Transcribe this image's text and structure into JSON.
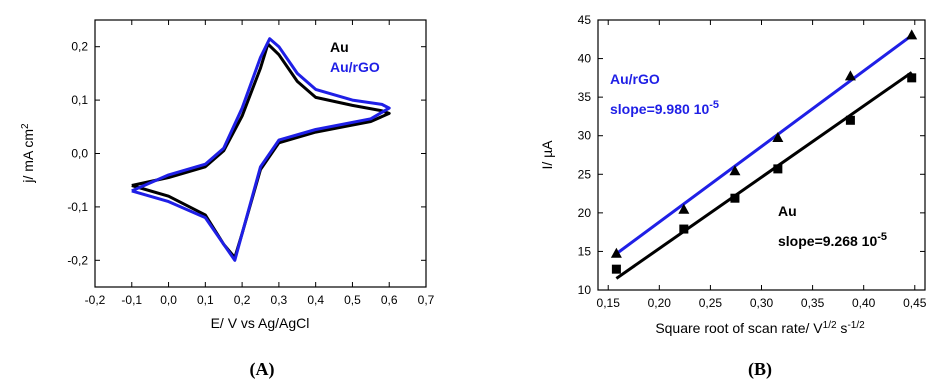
{
  "chart_data": [
    {
      "panel_label": "(A)",
      "type": "line",
      "xlabel": "E/ V vs Ag/AgCl",
      "ylabel": "j/ mA cm",
      "ylabel_sup": "2",
      "xlim": [
        -0.2,
        0.7
      ],
      "ylim": [
        -0.25,
        0.25
      ],
      "xticks": [
        "-0,2",
        "-0,1",
        "0,0",
        "0,1",
        "0,2",
        "0,3",
        "0,4",
        "0,5",
        "0,6",
        "0,7"
      ],
      "yticks": [
        "-0,2",
        "-0,1",
        "0,0",
        "0,1",
        "0,2"
      ],
      "series": [
        {
          "name": "Au",
          "color": "#000000",
          "points": [
            [
              -0.1,
              -0.06
            ],
            [
              0.0,
              -0.045
            ],
            [
              0.1,
              -0.025
            ],
            [
              0.15,
              0.005
            ],
            [
              0.2,
              0.07
            ],
            [
              0.25,
              0.16
            ],
            [
              0.27,
              0.205
            ],
            [
              0.3,
              0.185
            ],
            [
              0.35,
              0.135
            ],
            [
              0.4,
              0.105
            ],
            [
              0.5,
              0.09
            ],
            [
              0.58,
              0.08
            ],
            [
              0.6,
              0.075
            ],
            [
              0.55,
              0.06
            ],
            [
              0.4,
              0.04
            ],
            [
              0.3,
              0.02
            ],
            [
              0.25,
              -0.03
            ],
            [
              0.2,
              -0.15
            ],
            [
              0.18,
              -0.195
            ],
            [
              0.15,
              -0.17
            ],
            [
              0.1,
              -0.115
            ],
            [
              0.0,
              -0.08
            ],
            [
              -0.1,
              -0.06
            ]
          ]
        },
        {
          "name": "Au/rGO",
          "color": "#1f1fe6",
          "points": [
            [
              -0.1,
              -0.07
            ],
            [
              0.0,
              -0.04
            ],
            [
              0.1,
              -0.02
            ],
            [
              0.15,
              0.01
            ],
            [
              0.2,
              0.085
            ],
            [
              0.25,
              0.18
            ],
            [
              0.275,
              0.215
            ],
            [
              0.3,
              0.2
            ],
            [
              0.35,
              0.15
            ],
            [
              0.4,
              0.12
            ],
            [
              0.5,
              0.1
            ],
            [
              0.58,
              0.092
            ],
            [
              0.6,
              0.085
            ],
            [
              0.55,
              0.065
            ],
            [
              0.4,
              0.045
            ],
            [
              0.3,
              0.025
            ],
            [
              0.25,
              -0.025
            ],
            [
              0.2,
              -0.15
            ],
            [
              0.18,
              -0.2
            ],
            [
              0.15,
              -0.17
            ],
            [
              0.1,
              -0.12
            ],
            [
              0.0,
              -0.09
            ],
            [
              -0.1,
              -0.07
            ]
          ]
        }
      ]
    },
    {
      "panel_label": "(B)",
      "type": "scatter",
      "xlabel": "Square root of scan rate/ V",
      "xlabel_sup1": "1/2",
      "xlabel_mid": " s",
      "xlabel_sup2": "-1/2",
      "ylabel": "I/ µA",
      "xlim": [
        0.14,
        0.46
      ],
      "ylim": [
        10,
        45
      ],
      "xticks": [
        "0,15",
        "0,20",
        "0,25",
        "0,30",
        "0,35",
        "0,40",
        "0,45"
      ],
      "yticks": [
        "10",
        "15",
        "20",
        "25",
        "30",
        "35",
        "40",
        "45"
      ],
      "series": [
        {
          "name": "Au/rGO",
          "color": "#000000",
          "fit_color": "#1f1fe6",
          "marker": "triangle",
          "x": [
            0.158,
            0.224,
            0.274,
            0.316,
            0.387,
            0.447
          ],
          "y": [
            14.7,
            20.4,
            25.4,
            29.7,
            37.7,
            43.0
          ],
          "fit": [
            [
              0.158,
              14.7
            ],
            [
              0.447,
              43.0
            ]
          ]
        },
        {
          "name": "Au",
          "color": "#000000",
          "fit_color": "#000000",
          "marker": "square",
          "x": [
            0.158,
            0.224,
            0.274,
            0.316,
            0.387,
            0.447
          ],
          "y": [
            12.7,
            17.9,
            21.9,
            25.7,
            32.0,
            37.5
          ],
          "fit": [
            [
              0.158,
              11.5
            ],
            [
              0.447,
              38.2
            ]
          ]
        }
      ],
      "annotations": [
        {
          "text": "Au/rGO",
          "color": "#1f1fe6"
        },
        {
          "text": "slope=9.980 10",
          "sup": "-5",
          "color": "#1f1fe6"
        },
        {
          "text": "Au",
          "color": "#000000"
        },
        {
          "text": "slope=9.268 10",
          "sup": "-5",
          "color": "#000000"
        }
      ]
    }
  ]
}
